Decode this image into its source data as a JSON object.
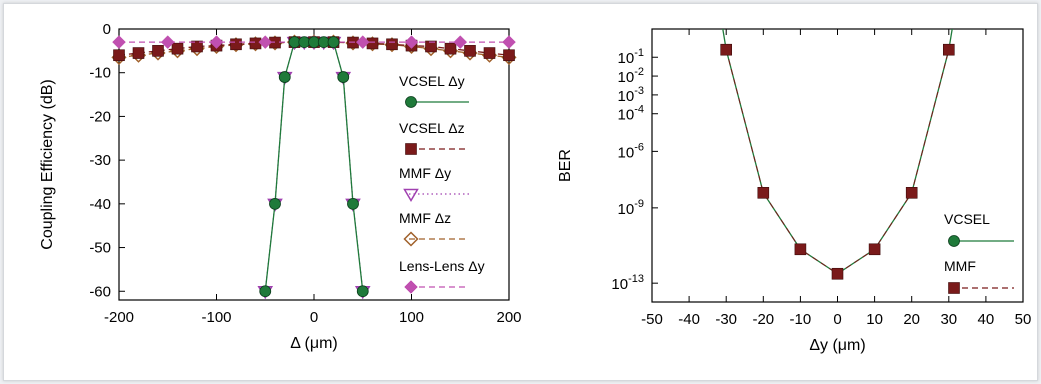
{
  "chart_data": [
    {
      "type": "line",
      "xlabel": "Δ (μm)",
      "ylabel": "Coupling Efficiency (dB)",
      "xlim": [
        -200,
        200
      ],
      "ylim": [
        -62,
        0
      ],
      "xticks": [
        -200,
        -100,
        0,
        100,
        200
      ],
      "yticks": [
        0,
        -10,
        -20,
        -30,
        -40,
        -50,
        -60
      ],
      "legend_position": "right",
      "series": [
        {
          "name": "VCSEL Δy",
          "color": "#1f7a3a",
          "marker": "circle",
          "line": "solid",
          "x": [
            -50,
            -40,
            -30,
            -20,
            -10,
            0,
            10,
            20,
            30,
            40,
            50
          ],
          "y": [
            -60,
            -40,
            -11,
            -3,
            -3,
            -3,
            -3,
            -3,
            -11,
            -40,
            -60
          ]
        },
        {
          "name": "VCSEL Δz",
          "color": "#7a1a1a",
          "marker": "square",
          "line": "dashed",
          "x": [
            -200,
            -180,
            -160,
            -140,
            -120,
            -100,
            -80,
            -60,
            -40,
            -20,
            0,
            20,
            40,
            60,
            80,
            100,
            120,
            140,
            160,
            180,
            200
          ],
          "y": [
            -6,
            -5.5,
            -5,
            -4.5,
            -4,
            -3.8,
            -3.5,
            -3.3,
            -3.1,
            -3,
            -3,
            -3,
            -3.1,
            -3.3,
            -3.5,
            -3.8,
            -4,
            -4.5,
            -5,
            -5.5,
            -6
          ]
        },
        {
          "name": "MMF Δy",
          "color": "#a040b0",
          "marker": "triangle-down",
          "line": "dotted",
          "x": [
            -50,
            -40,
            -30,
            -20,
            -10,
            0,
            10,
            20,
            30,
            40,
            50
          ],
          "y": [
            -60,
            -40,
            -11,
            -3,
            -3,
            -3,
            -3,
            -3,
            -11,
            -40,
            -60
          ]
        },
        {
          "name": "MMF Δz",
          "color": "#a0602a",
          "marker": "diamond-open",
          "line": "dashed",
          "x": [
            -200,
            -180,
            -160,
            -140,
            -120,
            -100,
            -80,
            -60,
            -40,
            -20,
            0,
            20,
            40,
            60,
            80,
            100,
            120,
            140,
            160,
            180,
            200
          ],
          "y": [
            -6.5,
            -6,
            -5.5,
            -5,
            -4.5,
            -4,
            -3.6,
            -3.4,
            -3.2,
            -3,
            -3,
            -3,
            -3.2,
            -3.4,
            -3.6,
            -4,
            -4.5,
            -5,
            -5.5,
            -6,
            -6.5
          ]
        },
        {
          "name": "Lens-Lens Δy",
          "color": "#c050b0",
          "marker": "diamond",
          "line": "dashed",
          "x": [
            -200,
            -150,
            -100,
            -50,
            0,
            50,
            100,
            150,
            200
          ],
          "y": [
            -3,
            -3,
            -3,
            -3,
            -3,
            -3,
            -3,
            -3,
            -3
          ]
        }
      ]
    },
    {
      "type": "line",
      "xlabel": "Δy (μm)",
      "ylabel": "BER",
      "xlim": [
        -50,
        50
      ],
      "yscale": "log",
      "ylim_log10": [
        -14,
        0.5
      ],
      "xticks": [
        -50,
        -40,
        -30,
        -20,
        -10,
        0,
        10,
        20,
        30,
        40,
        50
      ],
      "ytick_exponents": [
        -1,
        -2,
        -3,
        -4,
        -6,
        -9,
        -13
      ],
      "ytick_base": "10",
      "legend_position": "right",
      "series": [
        {
          "name": "VCSEL",
          "color": "#1f7a3a",
          "marker": "circle",
          "line": "solid",
          "x": [
            -31,
            -30,
            -20,
            -10,
            0,
            10,
            20,
            30,
            31
          ],
          "log10_y": [
            0.6,
            -0.6,
            -8.2,
            -11.2,
            -12.5,
            -11.2,
            -8.2,
            -0.6,
            0.6
          ]
        },
        {
          "name": "MMF",
          "color": "#7a1a1a",
          "marker": "square",
          "line": "dashed",
          "x": [
            -30,
            -20,
            -10,
            0,
            10,
            20,
            30
          ],
          "log10_y": [
            -0.6,
            -8.2,
            -11.2,
            -12.5,
            -11.2,
            -8.2,
            -0.6
          ]
        }
      ]
    }
  ]
}
